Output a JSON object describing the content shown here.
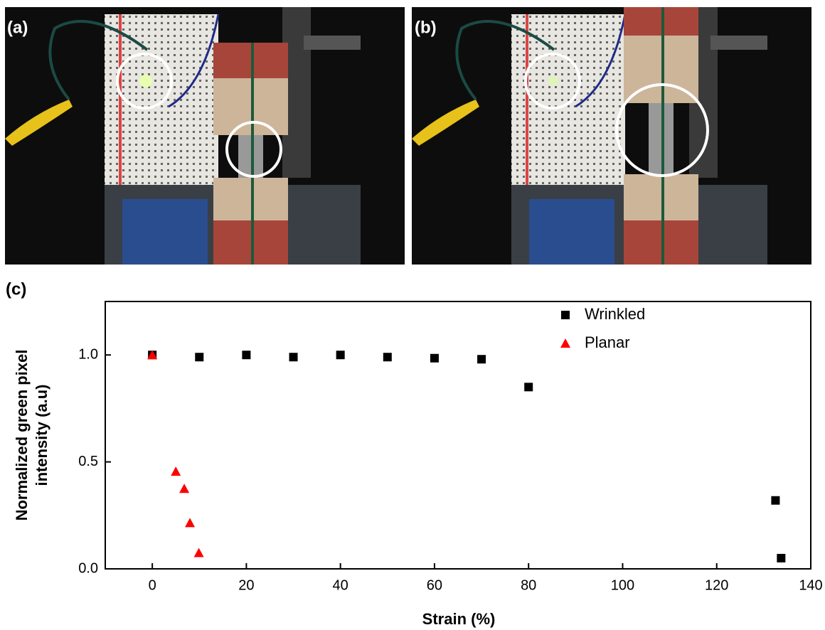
{
  "panels": [
    "(a)",
    "(b)",
    "(c)"
  ],
  "chart_data": {
    "type": "scatter",
    "xlabel": "Strain (%)",
    "ylabel": [
      "Normalized green pixel",
      "intensity (a.u)"
    ],
    "xlim": [
      -10,
      140
    ],
    "ylim": [
      0,
      1.25
    ],
    "xticks": [
      0,
      20,
      40,
      60,
      80,
      100,
      120,
      140
    ],
    "yticks": [
      {
        "value": 0,
        "label": "0.0"
      },
      {
        "value": 0.5,
        "label": "0.5"
      },
      {
        "value": 1,
        "label": "1.0"
      }
    ],
    "legend": "top-right",
    "series": [
      {
        "name": "Wrinkled",
        "color": "#000000",
        "marker": "square",
        "x": [
          0,
          10,
          20,
          30,
          40,
          50,
          60,
          70,
          80,
          132.5,
          133.7
        ],
        "values": [
          1.0,
          0.99,
          1.0,
          0.99,
          1.0,
          0.99,
          0.985,
          0.98,
          0.85,
          0.32,
          0.05
        ]
      },
      {
        "name": "Planar",
        "color": "#ff0000",
        "marker": "triangle",
        "x": [
          0,
          5,
          6.8,
          8,
          9.9
        ],
        "values": [
          1.0,
          0.455,
          0.375,
          0.215,
          0.075
        ]
      }
    ]
  }
}
